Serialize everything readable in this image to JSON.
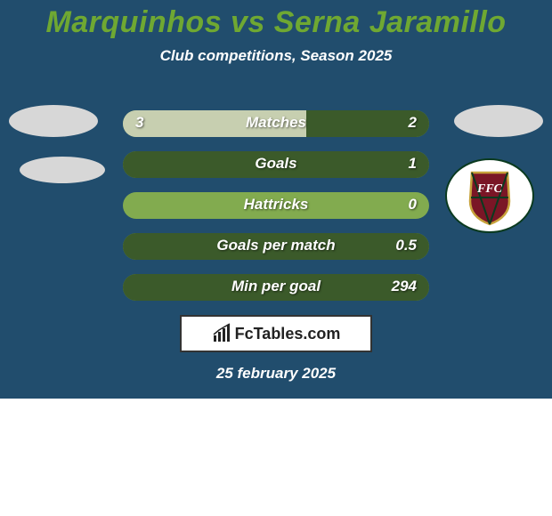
{
  "colors": {
    "card_bg": "#214d6d",
    "title": "#6fa832",
    "subtitle": "#ffffff",
    "row_bg": "#82ab4f",
    "row_fill_left": "#c7cfb0",
    "row_fill_right": "#3b5a2a",
    "placeholder_oval": "#d7d7d7",
    "brand_border": "#333333",
    "brand_text": "#222222",
    "date_text": "#ffffff"
  },
  "title": "Marquinhos vs Serna Jaramillo",
  "subtitle": "Club competitions, Season 2025",
  "rows": [
    {
      "label": "Matches",
      "left": "3",
      "right": "2",
      "left_pct": 60,
      "right_pct": 40
    },
    {
      "label": "Goals",
      "left": "",
      "right": "1",
      "left_pct": 0,
      "right_pct": 100
    },
    {
      "label": "Hattricks",
      "left": "",
      "right": "0",
      "left_pct": 0,
      "right_pct": 0
    },
    {
      "label": "Goals per match",
      "left": "",
      "right": "0.5",
      "left_pct": 0,
      "right_pct": 100
    },
    {
      "label": "Min per goal",
      "left": "",
      "right": "294",
      "left_pct": 0,
      "right_pct": 100
    }
  ],
  "brand": {
    "text": "FcTables.com"
  },
  "date": "25 february 2025",
  "crest": {
    "circle_fill": "#ffffff",
    "circle_stroke": "#0a3a1f",
    "shield_fill": "#7a1626",
    "shield_stroke": "#c7a23b",
    "monogram": "FFC",
    "monogram_color": "#ffffff"
  }
}
